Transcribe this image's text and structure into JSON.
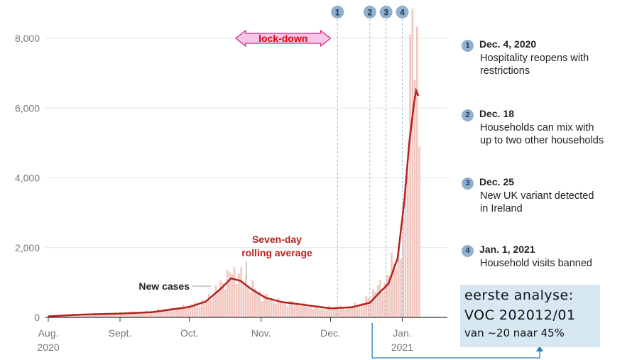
{
  "chart_data": {
    "type": "bar",
    "x_start": "2020-08-01",
    "x_end": "2021-01-10",
    "ylim": [
      0,
      8600
    ],
    "y_ticks": [
      {
        "value": 0,
        "label": "0"
      },
      {
        "value": 2000,
        "label": "2,000"
      },
      {
        "value": 4000,
        "label": "4,000"
      },
      {
        "value": 6000,
        "label": "6,000"
      },
      {
        "value": 8000,
        "label": "8,000"
      }
    ],
    "x_ticks": [
      {
        "date": "2020-08-01",
        "label": "Aug.",
        "label2": "2020"
      },
      {
        "date": "2020-09-01",
        "label": "Sept.",
        "label2": ""
      },
      {
        "date": "2020-10-01",
        "label": "Oct.",
        "label2": ""
      },
      {
        "date": "2020-11-01",
        "label": "Nov.",
        "label2": ""
      },
      {
        "date": "2020-12-01",
        "label": "Dec.",
        "label2": ""
      },
      {
        "date": "2021-01-01",
        "label": "Jan.",
        "label2": "2021"
      }
    ],
    "series": [
      {
        "name": "New cases",
        "kind": "bar",
        "color": "#f2c7c0",
        "points": [
          {
            "x": "2020-08-01",
            "y": 50
          },
          {
            "x": "2020-08-10",
            "y": 70
          },
          {
            "x": "2020-08-20",
            "y": 100
          },
          {
            "x": "2020-09-01",
            "y": 120
          },
          {
            "x": "2020-09-10",
            "y": 150
          },
          {
            "x": "2020-09-20",
            "y": 220
          },
          {
            "x": "2020-10-01",
            "y": 330
          },
          {
            "x": "2020-10-08",
            "y": 500
          },
          {
            "x": "2020-10-15",
            "y": 1000
          },
          {
            "x": "2020-10-18",
            "y": 1250
          },
          {
            "x": "2020-10-22",
            "y": 1280
          },
          {
            "x": "2020-10-25",
            "y": 1050
          },
          {
            "x": "2020-11-01",
            "y": 620
          },
          {
            "x": "2020-11-08",
            "y": 450
          },
          {
            "x": "2020-11-15",
            "y": 400
          },
          {
            "x": "2020-11-22",
            "y": 300
          },
          {
            "x": "2020-12-01",
            "y": 260
          },
          {
            "x": "2020-12-08",
            "y": 280
          },
          {
            "x": "2020-12-15",
            "y": 420
          },
          {
            "x": "2020-12-20",
            "y": 800
          },
          {
            "x": "2020-12-24",
            "y": 1000
          },
          {
            "x": "2020-12-26",
            "y": 1300
          },
          {
            "x": "2020-12-28",
            "y": 1700
          },
          {
            "x": "2020-12-31",
            "y": 1800
          },
          {
            "x": "2021-01-02",
            "y": 3400
          },
          {
            "x": "2021-01-03",
            "y": 5600
          },
          {
            "x": "2021-01-04",
            "y": 7800
          },
          {
            "x": "2021-01-05",
            "y": 8250
          },
          {
            "x": "2021-01-06",
            "y": 7200
          },
          {
            "x": "2021-01-07",
            "y": 6900
          },
          {
            "x": "2021-01-08",
            "y": 4900
          }
        ]
      },
      {
        "name": "Seven-day rolling average",
        "kind": "line",
        "color": "#b5221e",
        "points": [
          {
            "x": "2020-08-01",
            "y": 30
          },
          {
            "x": "2020-08-15",
            "y": 80
          },
          {
            "x": "2020-09-01",
            "y": 110
          },
          {
            "x": "2020-09-15",
            "y": 150
          },
          {
            "x": "2020-10-01",
            "y": 300
          },
          {
            "x": "2020-10-08",
            "y": 450
          },
          {
            "x": "2020-10-15",
            "y": 850
          },
          {
            "x": "2020-10-19",
            "y": 1120
          },
          {
            "x": "2020-10-23",
            "y": 1050
          },
          {
            "x": "2020-10-28",
            "y": 800
          },
          {
            "x": "2020-11-03",
            "y": 560
          },
          {
            "x": "2020-11-10",
            "y": 440
          },
          {
            "x": "2020-11-17",
            "y": 380
          },
          {
            "x": "2020-11-24",
            "y": 320
          },
          {
            "x": "2020-12-01",
            "y": 260
          },
          {
            "x": "2020-12-10",
            "y": 290
          },
          {
            "x": "2020-12-18",
            "y": 420
          },
          {
            "x": "2020-12-22",
            "y": 700
          },
          {
            "x": "2020-12-26",
            "y": 960
          },
          {
            "x": "2020-12-30",
            "y": 1700
          },
          {
            "x": "2021-01-02",
            "y": 3400
          },
          {
            "x": "2021-01-04",
            "y": 5000
          },
          {
            "x": "2021-01-06",
            "y": 6100
          },
          {
            "x": "2021-01-07",
            "y": 6500
          },
          {
            "x": "2021-01-08",
            "y": 6350
          }
        ]
      }
    ],
    "annotations": {
      "new_cases": "New cases",
      "rolling_1": "Seven-day",
      "rolling_2": "rolling average",
      "lockdown": "lock-down"
    },
    "lockdown_range": [
      "2020-10-21",
      "2020-12-01"
    ],
    "markers": [
      {
        "num": "1",
        "date": "2020-12-04"
      },
      {
        "num": "2",
        "date": "2020-12-18"
      },
      {
        "num": "3",
        "date": "2020-12-25"
      },
      {
        "num": "4",
        "date": "2021-01-01"
      }
    ],
    "highlight_date": "2020-12-19",
    "grid": true,
    "colors": {
      "bar": "#f2c7c0",
      "line": "#b5221e",
      "marker": "#8fb0d0",
      "lockdown_fill": "#f7c6e8",
      "lockdown_text": "#e0000f",
      "box": "#d7e8f3",
      "arrow": "#2a7fb8"
    }
  },
  "events": [
    {
      "num": "1",
      "date": "Dec. 4, 2020",
      "lines": [
        "Hospitality reopens with",
        "restrictions"
      ]
    },
    {
      "num": "2",
      "date": "Dec. 18",
      "lines": [
        "Households can mix with",
        "up to two other households"
      ]
    },
    {
      "num": "3",
      "date": "Dec. 25",
      "lines": [
        "New UK variant detected",
        "in Ireland"
      ]
    },
    {
      "num": "4",
      "date": "Jan. 1, 2021",
      "lines": [
        "Household visits banned"
      ]
    }
  ],
  "info_box": {
    "line1": "eerste analyse:",
    "line2": "VOC 202012/01",
    "line3": "van ~20 naar 45%"
  }
}
